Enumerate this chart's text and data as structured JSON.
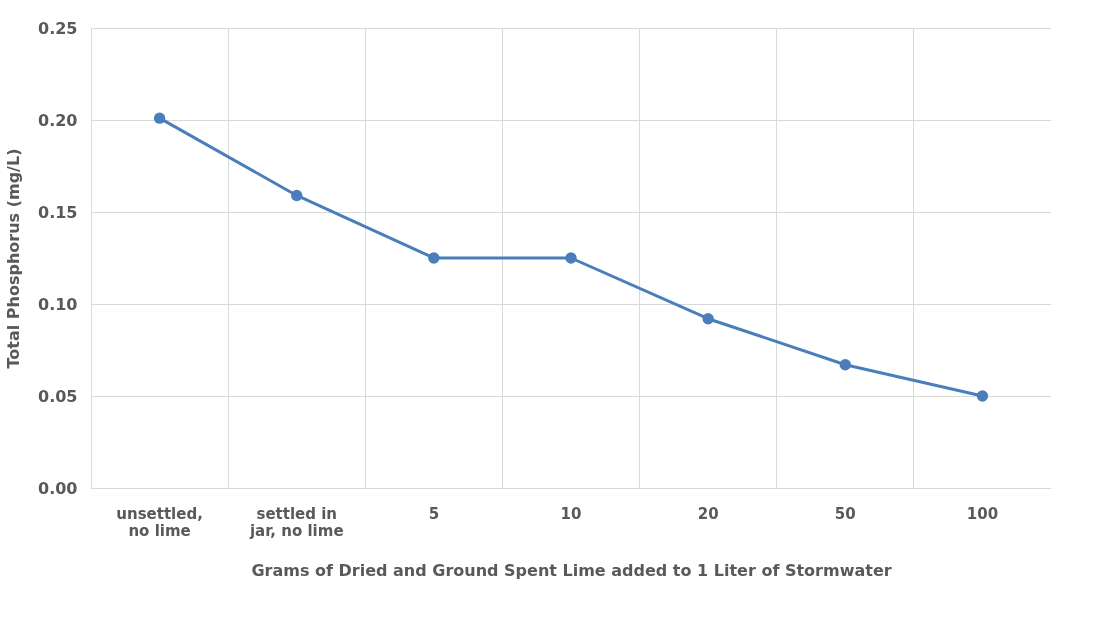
{
  "chart_data": {
    "type": "line",
    "xlabel": "Grams of Dried and Ground Spent Lime added to 1 Liter of Stormwater",
    "ylabel": "Total Phosphorus (mg/L)",
    "categories": [
      "unsettled,\nno lime",
      "settled in\njar, no lime",
      "5",
      "10",
      "20",
      "50",
      "100"
    ],
    "series": [
      {
        "color": "#4a7ebb",
        "values": [
          0.201,
          0.159,
          0.125,
          0.125,
          0.092,
          0.067,
          0.05
        ]
      }
    ],
    "ylim": [
      0,
      0.25
    ],
    "yticks": [
      {
        "value": 0,
        "label": "0.00"
      },
      {
        "value": 0.05,
        "label": "0.05"
      },
      {
        "value": 0.1,
        "label": "0.10"
      },
      {
        "value": 0.15,
        "label": "0.15"
      },
      {
        "value": 0.2,
        "label": "0.20"
      },
      {
        "value": 0.25,
        "label": "0.25"
      }
    ],
    "grid": true,
    "marker": "circle",
    "line_style": "solid"
  }
}
